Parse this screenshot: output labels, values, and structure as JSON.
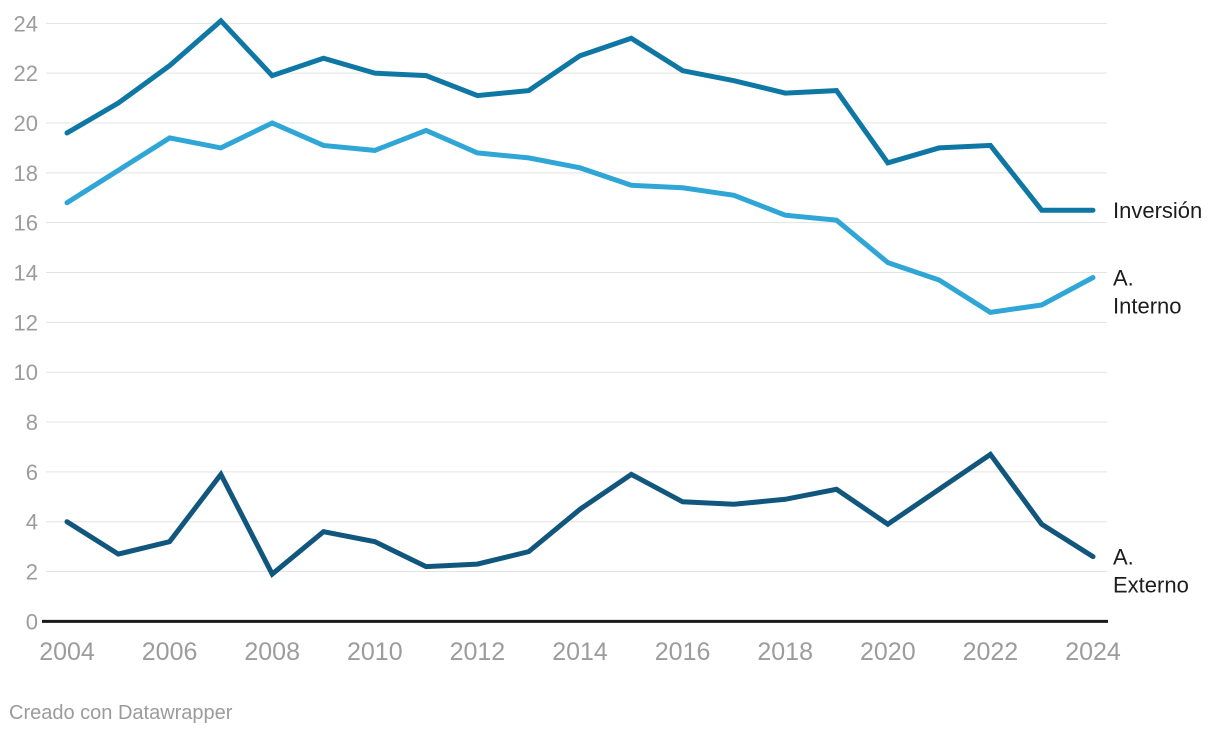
{
  "chart_data": {
    "type": "line",
    "x": [
      2004,
      2005,
      2006,
      2007,
      2008,
      2009,
      2010,
      2011,
      2012,
      2013,
      2014,
      2015,
      2016,
      2017,
      2018,
      2019,
      2020,
      2021,
      2022,
      2023,
      2024
    ],
    "series": [
      {
        "name": "Inversión",
        "label_lines": [
          "Inversión"
        ],
        "color": "#0e77a3",
        "values": [
          19.6,
          20.8,
          22.3,
          24.1,
          21.9,
          22.6,
          22.0,
          21.9,
          21.1,
          21.3,
          22.7,
          23.4,
          22.1,
          21.7,
          21.2,
          21.3,
          18.4,
          19.0,
          19.1,
          16.5,
          16.5
        ]
      },
      {
        "name": "A. Interno",
        "label_lines": [
          "A.",
          "Interno"
        ],
        "color": "#2fa6d6",
        "values": [
          16.8,
          18.1,
          19.4,
          19.0,
          20.0,
          19.1,
          18.9,
          19.7,
          18.8,
          18.6,
          18.2,
          17.5,
          17.4,
          17.1,
          16.3,
          16.1,
          14.4,
          13.7,
          12.4,
          12.7,
          13.8
        ]
      },
      {
        "name": "A. Externo",
        "label_lines": [
          "A.",
          "Externo"
        ],
        "color": "#11567c",
        "values": [
          4.0,
          2.7,
          3.2,
          5.9,
          1.9,
          3.6,
          3.2,
          2.2,
          2.3,
          2.8,
          4.5,
          5.9,
          4.8,
          4.7,
          4.9,
          5.3,
          3.9,
          5.3,
          6.7,
          3.9,
          2.6
        ]
      }
    ],
    "x_ticks": [
      2004,
      2006,
      2008,
      2010,
      2012,
      2014,
      2016,
      2018,
      2020,
      2022,
      2024
    ],
    "y_ticks": [
      0,
      2,
      4,
      6,
      8,
      10,
      12,
      14,
      16,
      18,
      20,
      22,
      24
    ],
    "xlim": [
      2004,
      2024
    ],
    "ylim": [
      0,
      24
    ],
    "grid": true,
    "legend_position": "right-end-of-line"
  },
  "footer": {
    "credit": "Creado con Datawrapper"
  },
  "colors": {
    "background": "#ffffff",
    "grid": "#e3e3e3",
    "axis_line": "#1a1a1a",
    "tick_text": "#9c9c9c",
    "series_label_text": "#1d1d1d",
    "footer_text": "#9b9b9b"
  }
}
